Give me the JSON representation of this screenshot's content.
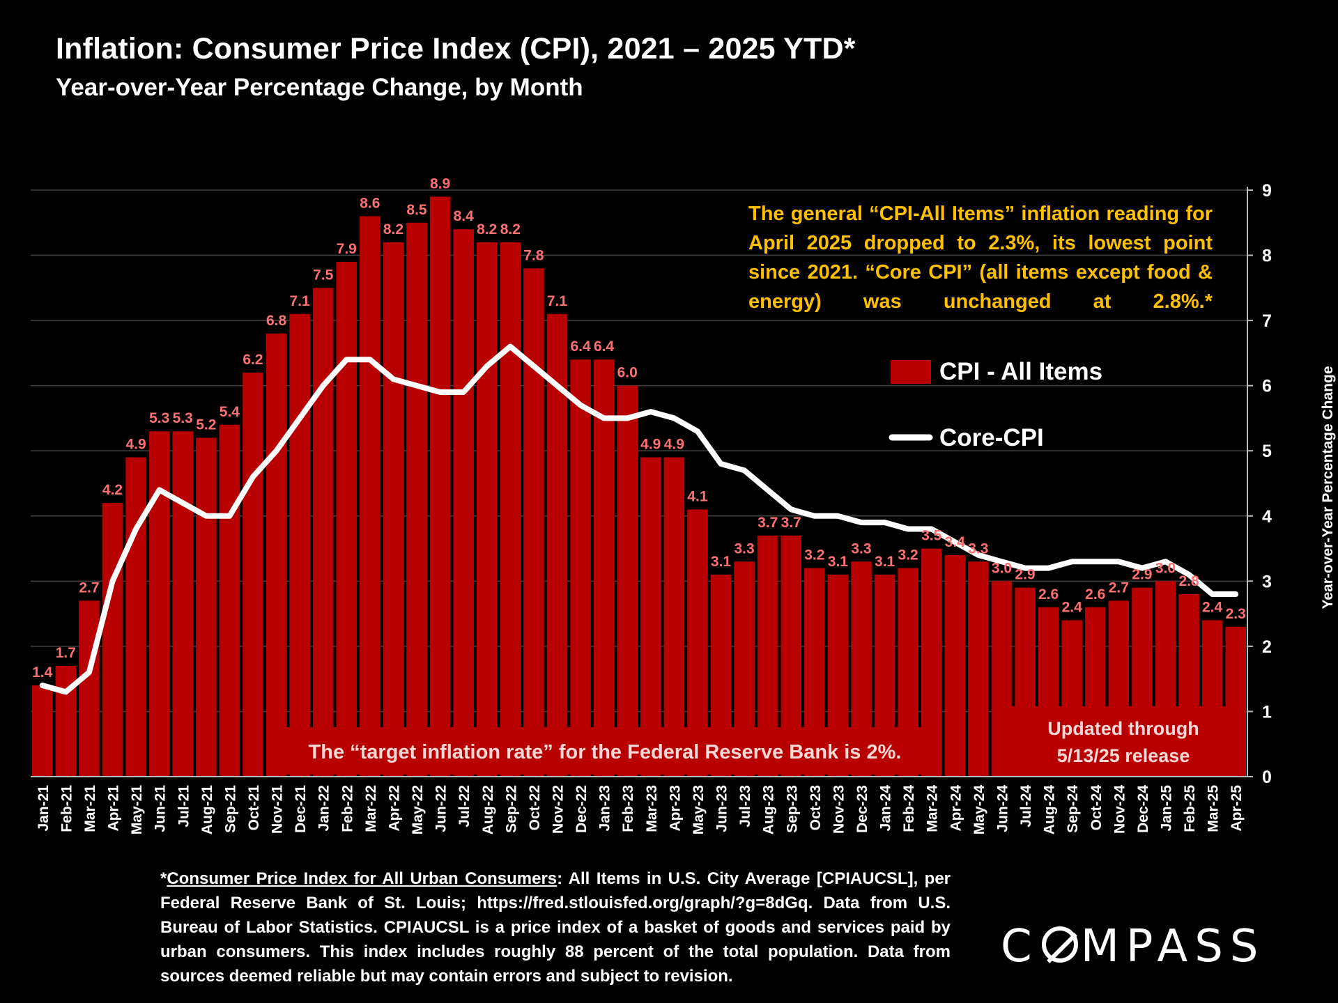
{
  "title": "Inflation: Consumer Price Index (CPI), 2021 – 2025 YTD*",
  "subtitle": "Year-over-Year Percentage Change, by Month",
  "annotation": {
    "note": "The general “CPI-All Items” inflation reading for April 2025 dropped to 2.3%, its lowest point since 2021. “Core CPI” (all items except food & energy) was unchanged at 2.8%.*",
    "target": "The “target inflation rate” for the Federal Reserve Bank is 2%.",
    "updated_line1": "Updated through",
    "updated_line2": "5/13/25 release"
  },
  "footnote": {
    "link_text": "Consumer Price Index for All Urban Consumers",
    "prefix": "*",
    "body": ": All Items in U.S. City Average [CPIAUCSL], per Federal Reserve Bank of St. Louis; https://fred.stlouisfed.org/graph/?g=8dGq. Data from U.S. Bureau of Labor Statistics. CPIAUCSL is a price index of a basket of goods and services paid by urban consumers. This index includes roughly 88 percent of the total population. Data from sources deemed reliable but may contain errors and subject to revision."
  },
  "logo": {
    "left": "C",
    "right": "MPASS"
  },
  "colors": {
    "bar": "#b80000",
    "bar_label": "#ff7070",
    "line": "#ffffff",
    "note": "#ffc000",
    "grid": "#444444"
  },
  "chart_data": {
    "type": "bar",
    "ylabel": "Year-over-Year Percentage Change",
    "ylim": [
      0,
      9
    ],
    "yticks": [
      "0",
      "1",
      "2",
      "3",
      "4",
      "5",
      "6",
      "7",
      "8",
      "9"
    ],
    "grid": true,
    "legend_position": "right",
    "categories": [
      "Jan-21",
      "Feb-21",
      "Mar-21",
      "Apr-21",
      "May-21",
      "Jun-21",
      "Jul-21",
      "Aug-21",
      "Sep-21",
      "Oct-21",
      "Nov-21",
      "Dec-21",
      "Jan-22",
      "Feb-22",
      "Mar-22",
      "Apr-22",
      "May-22",
      "Jun-22",
      "Jul-22",
      "Aug-22",
      "Sep-22",
      "Oct-22",
      "Nov-22",
      "Dec-22",
      "Jan-23",
      "Feb-23",
      "Mar-23",
      "Apr-23",
      "May-23",
      "Jun-23",
      "Jul-23",
      "Aug-23",
      "Sep-23",
      "Oct-23",
      "Nov-23",
      "Dec-23",
      "Jan-24",
      "Feb-24",
      "Mar-24",
      "Apr-24",
      "May-24",
      "Jun-24",
      "Jul-24",
      "Aug-24",
      "Sep-24",
      "Oct-24",
      "Nov-24",
      "Dec-24",
      "Jan-25",
      "Feb-25",
      "Mar-25",
      "Apr-25"
    ],
    "series": [
      {
        "name": "CPI - All Items",
        "kind": "bar",
        "values": [
          1.4,
          1.7,
          2.7,
          4.2,
          4.9,
          5.3,
          5.3,
          5.2,
          5.4,
          6.2,
          6.8,
          7.1,
          7.5,
          7.9,
          8.6,
          8.2,
          8.5,
          8.9,
          8.4,
          8.2,
          8.2,
          7.8,
          7.1,
          6.4,
          6.4,
          6.0,
          4.9,
          4.9,
          4.1,
          3.1,
          3.3,
          3.7,
          3.7,
          3.2,
          3.1,
          3.3,
          3.1,
          3.2,
          3.5,
          3.4,
          3.3,
          3.0,
          2.9,
          2.6,
          2.4,
          2.6,
          2.7,
          2.9,
          3.0,
          2.8,
          2.4,
          2.3
        ],
        "labels": [
          "1.4",
          "1.7",
          "2.7",
          "4.2",
          "4.9",
          "5.3",
          "5.3",
          "5.2",
          "5.4",
          "6.2",
          "6.8",
          "7.1",
          "7.5",
          "7.9",
          "8.6",
          "8.2",
          "8.5",
          "8.9",
          "8.4",
          "8.2",
          "8.2",
          "7.8",
          "7.1",
          "6.4",
          "6.4",
          "6.0",
          "4.9",
          "4.9",
          "4.1",
          "3.1",
          "3.3",
          "3.7",
          "3.7",
          "3.2",
          "3.1",
          "3.3",
          "3.1",
          "3.2",
          "3.5",
          "3.4",
          "3.3",
          "3.0",
          "2.9",
          "2.6",
          "2.4",
          "2.6",
          "2.7",
          "2.9",
          "3.0",
          "2.8",
          "2.4",
          "2.3"
        ]
      },
      {
        "name": "Core-CPI",
        "kind": "line",
        "values": [
          1.4,
          1.3,
          1.6,
          3.0,
          3.8,
          4.4,
          4.2,
          4.0,
          4.0,
          4.6,
          5.0,
          5.5,
          6.0,
          6.4,
          6.4,
          6.1,
          6.0,
          5.9,
          5.9,
          6.3,
          6.6,
          6.3,
          6.0,
          5.7,
          5.5,
          5.5,
          5.6,
          5.5,
          5.3,
          4.8,
          4.7,
          4.4,
          4.1,
          4.0,
          4.0,
          3.9,
          3.9,
          3.8,
          3.8,
          3.6,
          3.4,
          3.3,
          3.2,
          3.2,
          3.3,
          3.3,
          3.3,
          3.2,
          3.3,
          3.1,
          2.8,
          2.8
        ]
      }
    ]
  }
}
